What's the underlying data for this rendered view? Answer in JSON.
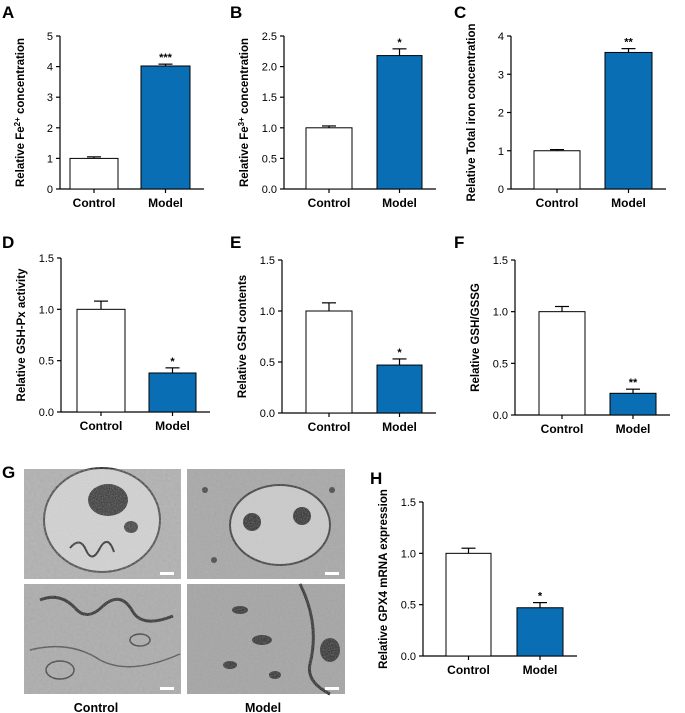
{
  "colors": {
    "model": "#0a6eb4",
    "control": "#ffffff",
    "axis": "#000000"
  },
  "chart_data": [
    {
      "panel": "A",
      "type": "bar",
      "categories": [
        "Control",
        "Model"
      ],
      "values": [
        1.0,
        4.02
      ],
      "errors": [
        0.05,
        0.06
      ],
      "ylabel_pre": "Relative Fe",
      "ylabel_sup": "2+",
      "ylabel_post": " concentration",
      "ylim": [
        0,
        5
      ],
      "yticks": [
        "0",
        "1",
        "2",
        "3",
        "4",
        "5"
      ],
      "significance": [
        "",
        "***"
      ]
    },
    {
      "panel": "B",
      "type": "bar",
      "categories": [
        "Control",
        "Model"
      ],
      "values": [
        1.0,
        2.18
      ],
      "errors": [
        0.03,
        0.11
      ],
      "ylabel_pre": "Relative Fe",
      "ylabel_sup": "3+",
      "ylabel_post": " concentration",
      "ylim": [
        0,
        2.5
      ],
      "yticks": [
        "0.0",
        "0.5",
        "1.0",
        "1.5",
        "2.0",
        "2.5"
      ],
      "significance": [
        "",
        "*"
      ]
    },
    {
      "panel": "C",
      "type": "bar",
      "categories": [
        "Control",
        "Model"
      ],
      "values": [
        1.0,
        3.57
      ],
      "errors": [
        0.03,
        0.1
      ],
      "ylabel_pre": "Relative Total iron concentration",
      "ylabel_sup": "",
      "ylabel_post": "",
      "ylim": [
        0,
        4
      ],
      "yticks": [
        "0",
        "1",
        "2",
        "3",
        "4"
      ],
      "significance": [
        "",
        "**"
      ]
    },
    {
      "panel": "D",
      "type": "bar",
      "categories": [
        "Control",
        "Model"
      ],
      "values": [
        1.0,
        0.38
      ],
      "errors": [
        0.08,
        0.05
      ],
      "ylabel_pre": "Relative GSH-Px activity",
      "ylabel_sup": "",
      "ylabel_post": "",
      "ylim": [
        0,
        1.5
      ],
      "yticks": [
        "0.0",
        "0.5",
        "1.0",
        "1.5"
      ],
      "significance": [
        "",
        "*"
      ]
    },
    {
      "panel": "E",
      "type": "bar",
      "categories": [
        "Control",
        "Model"
      ],
      "values": [
        1.0,
        0.47
      ],
      "errors": [
        0.08,
        0.06
      ],
      "ylabel_pre": "Relative GSH contents",
      "ylabel_sup": "",
      "ylabel_post": "",
      "ylim": [
        0,
        1.5
      ],
      "yticks": [
        "0.0",
        "0.5",
        "1.0",
        "1.5"
      ],
      "significance": [
        "",
        "*"
      ]
    },
    {
      "panel": "F",
      "type": "bar",
      "categories": [
        "Control",
        "Model"
      ],
      "values": [
        1.0,
        0.21
      ],
      "errors": [
        0.05,
        0.04
      ],
      "ylabel_pre": "Relative GSH/GSSG",
      "ylabel_sup": "",
      "ylabel_post": "",
      "ylim": [
        0,
        1.5
      ],
      "yticks": [
        "0.0",
        "0.5",
        "1.0",
        "1.5"
      ],
      "significance": [
        "",
        "**"
      ]
    },
    {
      "panel": "H",
      "type": "bar",
      "categories": [
        "Control",
        "Model"
      ],
      "values": [
        1.0,
        0.47
      ],
      "errors": [
        0.05,
        0.05
      ],
      "ylabel_pre": "Relative GPX4 mRNA expression",
      "ylabel_sup": "",
      "ylabel_post": "",
      "ylim": [
        0,
        1.5
      ],
      "yticks": [
        "0.0",
        "0.5",
        "1.0",
        "1.5"
      ],
      "significance": [
        "",
        "*"
      ]
    }
  ],
  "panel_g": {
    "letter": "G",
    "captions": [
      "Control",
      "Model"
    ]
  }
}
